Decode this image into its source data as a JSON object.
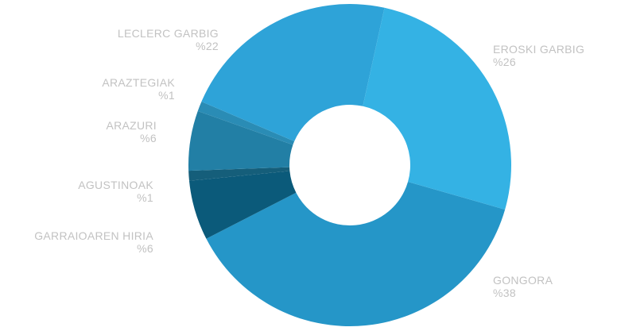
{
  "chart_data": {
    "type": "pie",
    "donut": true,
    "start_label": "GONGORA",
    "slices": [
      {
        "label": "GONGORA",
        "pct_text": "%38",
        "value": 38,
        "color": "#2596c8"
      },
      {
        "label": "GARRAIOAREN HIRIA",
        "pct_text": "%6",
        "value": 6,
        "color": "#0b5a7a"
      },
      {
        "label": "AGUSTINOAK",
        "pct_text": "%1",
        "value": 1,
        "color": "#155e7a"
      },
      {
        "label": "ARAZURI",
        "pct_text": "%6",
        "value": 6,
        "color": "#227fa5"
      },
      {
        "label": "ARAZTEGIAK",
        "pct_text": "%1",
        "value": 1,
        "color": "#2a8cb5"
      },
      {
        "label": "LECLERC GARBIG",
        "pct_text": "%22",
        "value": 22,
        "color": "#2ea3d8"
      },
      {
        "label": "EROSKI GARBIG",
        "pct_text": "%26",
        "value": 26,
        "color": "#34b2e4"
      }
    ]
  }
}
